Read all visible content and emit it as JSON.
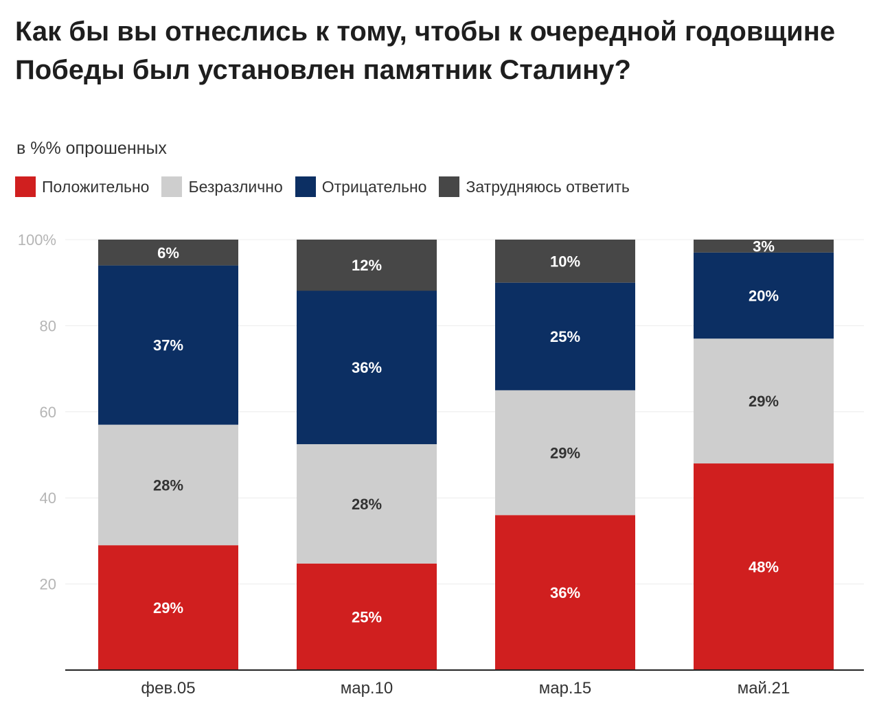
{
  "chart_data": {
    "type": "bar",
    "stacked": true,
    "title": "Как бы вы отнеслись к тому, чтобы к очередной годовщине Победы был установлен памятник Сталину?",
    "subtitle": "в %% опрошенных",
    "categories": [
      "фев.05",
      "мар.10",
      "мар.15",
      "май.21"
    ],
    "series": [
      {
        "name": "Положительно",
        "color": "#d01f1f",
        "label_color": "#ffffff",
        "values": [
          29,
          25,
          36,
          48
        ],
        "labels": [
          "29%",
          "25%",
          "36%",
          "48%"
        ]
      },
      {
        "name": "Безразлично",
        "color": "#cecece",
        "label_color": "#333333",
        "values": [
          28,
          28,
          29,
          29
        ],
        "labels": [
          "28%",
          "28%",
          "29%",
          "29%"
        ]
      },
      {
        "name": "Отрицательно",
        "color": "#0c2f63",
        "label_color": "#ffffff",
        "values": [
          37,
          36,
          25,
          20
        ],
        "labels": [
          "37%",
          "36%",
          "25%",
          "20%"
        ]
      },
      {
        "name": "Затрудняюсь ответить",
        "color": "#474747",
        "label_color": "#ffffff",
        "values": [
          6,
          12,
          10,
          3
        ],
        "labels": [
          "6%",
          "12%",
          "10%",
          "3%"
        ]
      }
    ],
    "yticks": [
      "20",
      "40",
      "60",
      "80",
      "100%"
    ],
    "ytick_values": [
      20,
      40,
      60,
      80,
      100
    ],
    "ylim": [
      0,
      100
    ],
    "grid": true,
    "legend_position": "top-left"
  }
}
